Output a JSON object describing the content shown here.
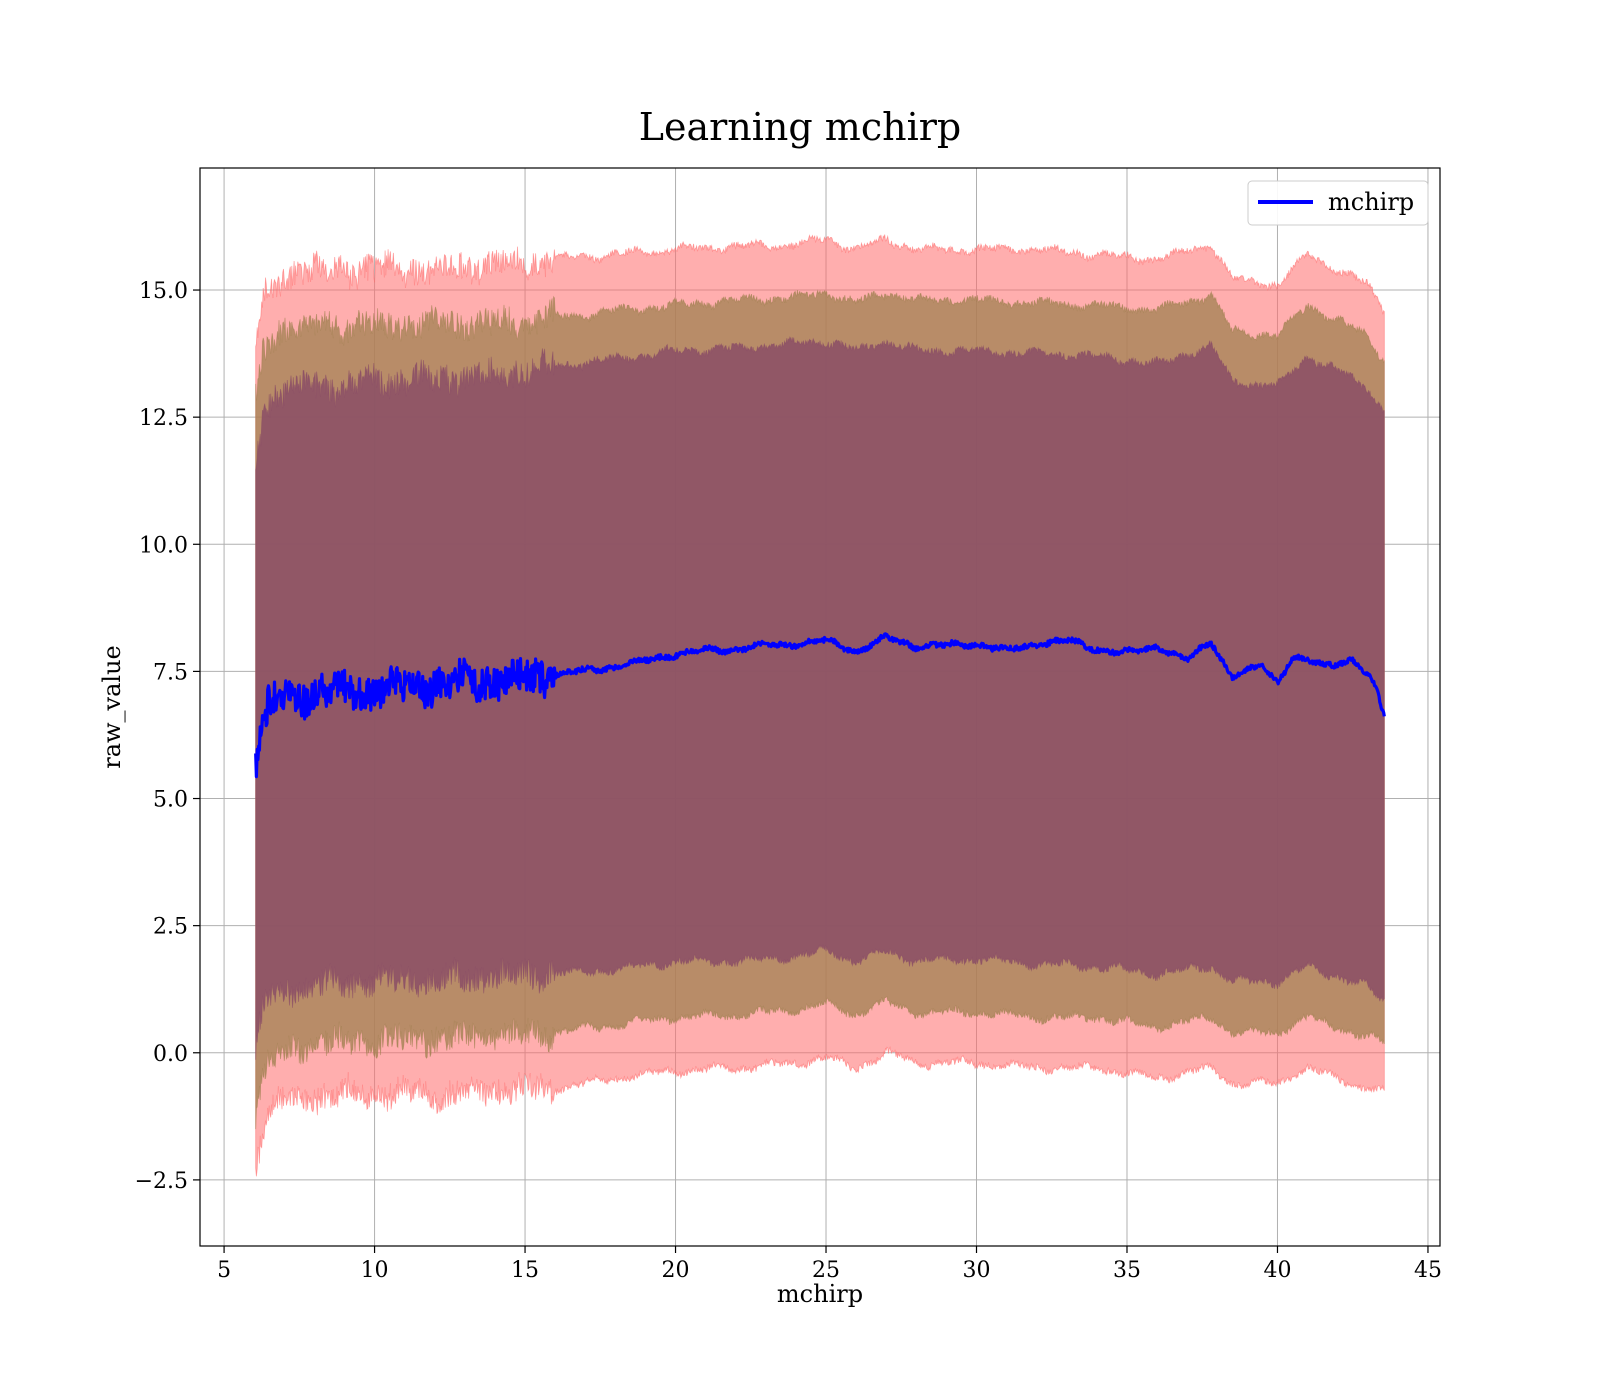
{
  "chart_data": {
    "type": "line",
    "title": "Learning mchirp",
    "xlabel": "mchirp",
    "ylabel": "raw_value",
    "xlim": [
      4.2,
      45.4
    ],
    "ylim": [
      -3.8,
      17.4
    ],
    "x_ticks": [
      5,
      10,
      15,
      20,
      25,
      30,
      35,
      40,
      45
    ],
    "y_ticks": [
      -2.5,
      0.0,
      2.5,
      5.0,
      7.5,
      10.0,
      12.5,
      15.0
    ],
    "x_tick_labels": [
      "5",
      "10",
      "15",
      "20",
      "25",
      "30",
      "35",
      "40",
      "45"
    ],
    "y_tick_labels": [
      "−2.5",
      "0.0",
      "2.5",
      "5.0",
      "7.5",
      "10.0",
      "12.5",
      "15.0"
    ],
    "grid": true,
    "legend": {
      "position": "top-right",
      "entries": [
        {
          "name": "mchirp",
          "color": "#0000ff"
        }
      ]
    },
    "colors": {
      "line": "#0000ff",
      "band_outer": "#ff6b6b",
      "band_middle": "#a08050",
      "band_inner": "#8a4d66"
    },
    "x_range": [
      6.05,
      43.55
    ],
    "series": [
      {
        "name": "mchirp",
        "role": "mean",
        "x": [
          6.05,
          6.2,
          6.5,
          7.0,
          8.0,
          9.0,
          10.0,
          11.0,
          12.0,
          13.0,
          14.0,
          15.0,
          16.0,
          17.0,
          18.0,
          19.0,
          20.0,
          21.0,
          22.0,
          23.0,
          24.0,
          25.0,
          26.0,
          27.0,
          28.0,
          29.0,
          30.0,
          31.0,
          32.0,
          33.0,
          34.0,
          35.0,
          36.0,
          37.0,
          37.8,
          38.5,
          39.5,
          40.0,
          40.5,
          41.5,
          42.5,
          43.0,
          43.3,
          43.55
        ],
        "y": [
          5.8,
          6.2,
          6.8,
          7.0,
          7.1,
          7.1,
          7.15,
          7.2,
          7.25,
          7.3,
          7.35,
          7.35,
          7.45,
          7.5,
          7.6,
          7.7,
          7.85,
          7.9,
          7.95,
          8.0,
          8.05,
          8.1,
          7.9,
          8.15,
          8.0,
          8.0,
          8.05,
          7.9,
          8.05,
          8.1,
          7.95,
          7.85,
          8.0,
          7.7,
          8.1,
          7.4,
          7.6,
          7.3,
          7.8,
          7.6,
          7.75,
          7.4,
          7.1,
          6.6
        ]
      }
    ],
    "bands": [
      {
        "name": "band_outer",
        "x": [
          6.05,
          6.3,
          6.8,
          7.5,
          8.5,
          10.0,
          12.0,
          14.0,
          16.0,
          18.0,
          20.0,
          22.0,
          24.0,
          25.0,
          26.0,
          27.0,
          28.0,
          30.0,
          32.0,
          34.0,
          36.0,
          37.8,
          38.5,
          40.0,
          41.0,
          42.0,
          43.0,
          43.55
        ],
        "upper": [
          13.8,
          14.8,
          15.2,
          15.4,
          15.4,
          15.4,
          15.4,
          15.5,
          15.6,
          15.7,
          15.8,
          15.85,
          15.9,
          16.0,
          15.8,
          16.0,
          15.8,
          15.8,
          15.8,
          15.7,
          15.6,
          15.9,
          15.2,
          15.1,
          15.7,
          15.4,
          15.1,
          14.6
        ],
        "lower": [
          -2.2,
          -1.4,
          -1.0,
          -0.9,
          -0.8,
          -0.8,
          -0.8,
          -0.75,
          -0.7,
          -0.5,
          -0.35,
          -0.3,
          -0.2,
          -0.1,
          -0.3,
          0.0,
          -0.2,
          -0.2,
          -0.3,
          -0.3,
          -0.5,
          -0.3,
          -0.6,
          -0.6,
          -0.3,
          -0.5,
          -0.7,
          -0.8
        ]
      },
      {
        "name": "band_middle",
        "x": [
          6.05,
          6.3,
          6.8,
          7.5,
          8.5,
          10.0,
          12.0,
          14.0,
          16.0,
          18.0,
          20.0,
          22.0,
          24.0,
          25.0,
          26.0,
          27.0,
          28.0,
          30.0,
          32.0,
          34.0,
          36.0,
          37.8,
          38.5,
          40.0,
          41.0,
          42.0,
          43.0,
          43.55
        ],
        "upper": [
          12.8,
          13.8,
          14.2,
          14.3,
          14.3,
          14.3,
          14.3,
          14.35,
          14.45,
          14.6,
          14.7,
          14.8,
          14.85,
          14.95,
          14.75,
          14.95,
          14.8,
          14.8,
          14.75,
          14.7,
          14.6,
          14.9,
          14.2,
          14.1,
          14.7,
          14.4,
          14.1,
          13.6
        ],
        "lower": [
          -1.3,
          -0.4,
          0.0,
          0.1,
          0.2,
          0.25,
          0.3,
          0.35,
          0.4,
          0.55,
          0.7,
          0.75,
          0.85,
          0.95,
          0.75,
          1.0,
          0.8,
          0.8,
          0.7,
          0.7,
          0.5,
          0.7,
          0.4,
          0.4,
          0.7,
          0.5,
          0.3,
          0.2
        ]
      },
      {
        "name": "band_inner",
        "x": [
          6.05,
          6.3,
          6.8,
          7.5,
          8.5,
          10.0,
          12.0,
          14.0,
          16.0,
          18.0,
          20.0,
          22.0,
          24.0,
          25.0,
          26.0,
          27.0,
          28.0,
          30.0,
          32.0,
          34.0,
          36.0,
          37.8,
          38.5,
          40.0,
          41.0,
          42.0,
          43.0,
          43.55
        ],
        "upper": [
          11.5,
          12.6,
          13.0,
          13.1,
          13.1,
          13.2,
          13.25,
          13.35,
          13.5,
          13.65,
          13.8,
          13.85,
          13.95,
          14.0,
          13.8,
          14.0,
          13.8,
          13.8,
          13.75,
          13.7,
          13.55,
          13.9,
          13.2,
          13.1,
          13.7,
          13.4,
          13.1,
          12.6
        ],
        "lower": [
          0.0,
          0.9,
          1.2,
          1.3,
          1.35,
          1.4,
          1.45,
          1.5,
          1.55,
          1.65,
          1.8,
          1.8,
          1.9,
          2.0,
          1.8,
          2.0,
          1.8,
          1.85,
          1.75,
          1.7,
          1.55,
          1.7,
          1.4,
          1.4,
          1.7,
          1.5,
          1.3,
          1.0
        ]
      }
    ]
  }
}
